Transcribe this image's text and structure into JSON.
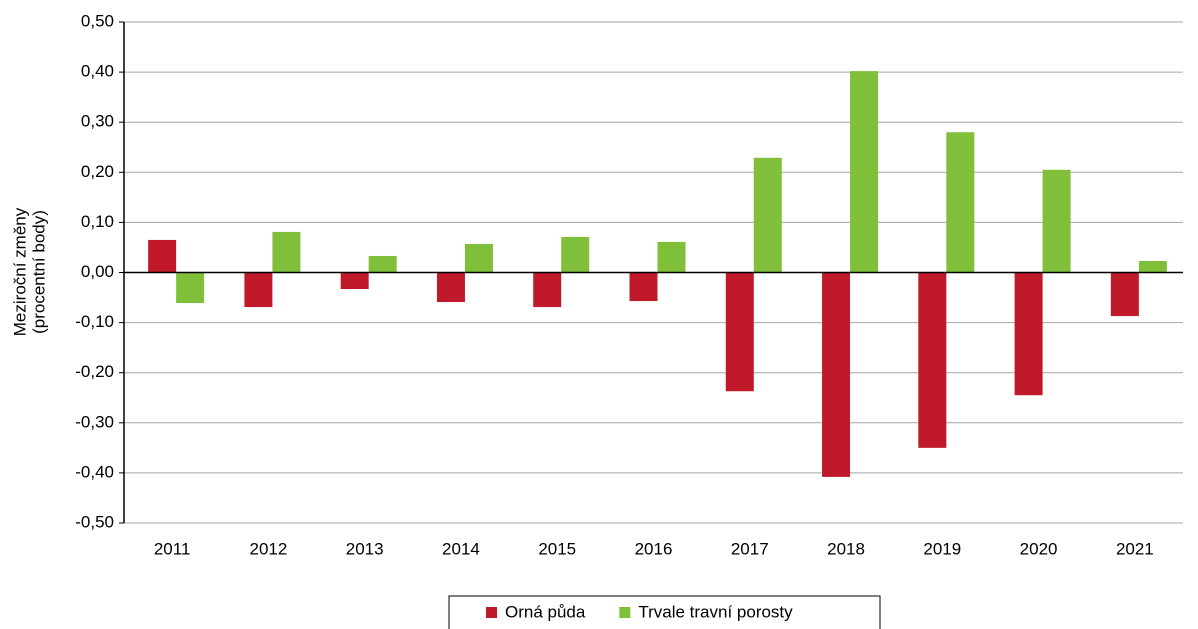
{
  "chart_data": {
    "type": "bar",
    "y_label": [
      "Meziroční změny",
      "(procentní body)"
    ],
    "categories": [
      "2011",
      "2012",
      "2013",
      "2014",
      "2015",
      "2016",
      "2017",
      "2018",
      "2019",
      "2020",
      "2021"
    ],
    "series": [
      {
        "name": "Orná půda",
        "color": "#c0192a",
        "values": [
          0.065,
          -0.069,
          -0.033,
          -0.059,
          -0.069,
          -0.057,
          -0.237,
          -0.408,
          -0.35,
          -0.245,
          -0.087
        ]
      },
      {
        "name": "Trvale travní porosty",
        "color": "#7fbf3a",
        "values": [
          -0.061,
          0.081,
          0.033,
          0.057,
          0.071,
          0.061,
          0.229,
          0.402,
          0.28,
          0.205,
          0.023
        ]
      }
    ],
    "ylim": [
      -0.5,
      0.5
    ],
    "yticks": [
      {
        "value": -0.5,
        "label": "-0,50"
      },
      {
        "value": -0.4,
        "label": "-0,40"
      },
      {
        "value": -0.3,
        "label": "-0,30"
      },
      {
        "value": -0.2,
        "label": "-0,20"
      },
      {
        "value": -0.1,
        "label": "-0,10"
      },
      {
        "value": 0,
        "label": "0,00"
      },
      {
        "value": 0.1,
        "label": "0,10"
      },
      {
        "value": 0.2,
        "label": "0,20"
      },
      {
        "value": 0.3,
        "label": "0,30"
      },
      {
        "value": 0.4,
        "label": "0,40"
      },
      {
        "value": 0.5,
        "label": "0,50"
      }
    ],
    "grid": true,
    "legend": "bottom"
  }
}
